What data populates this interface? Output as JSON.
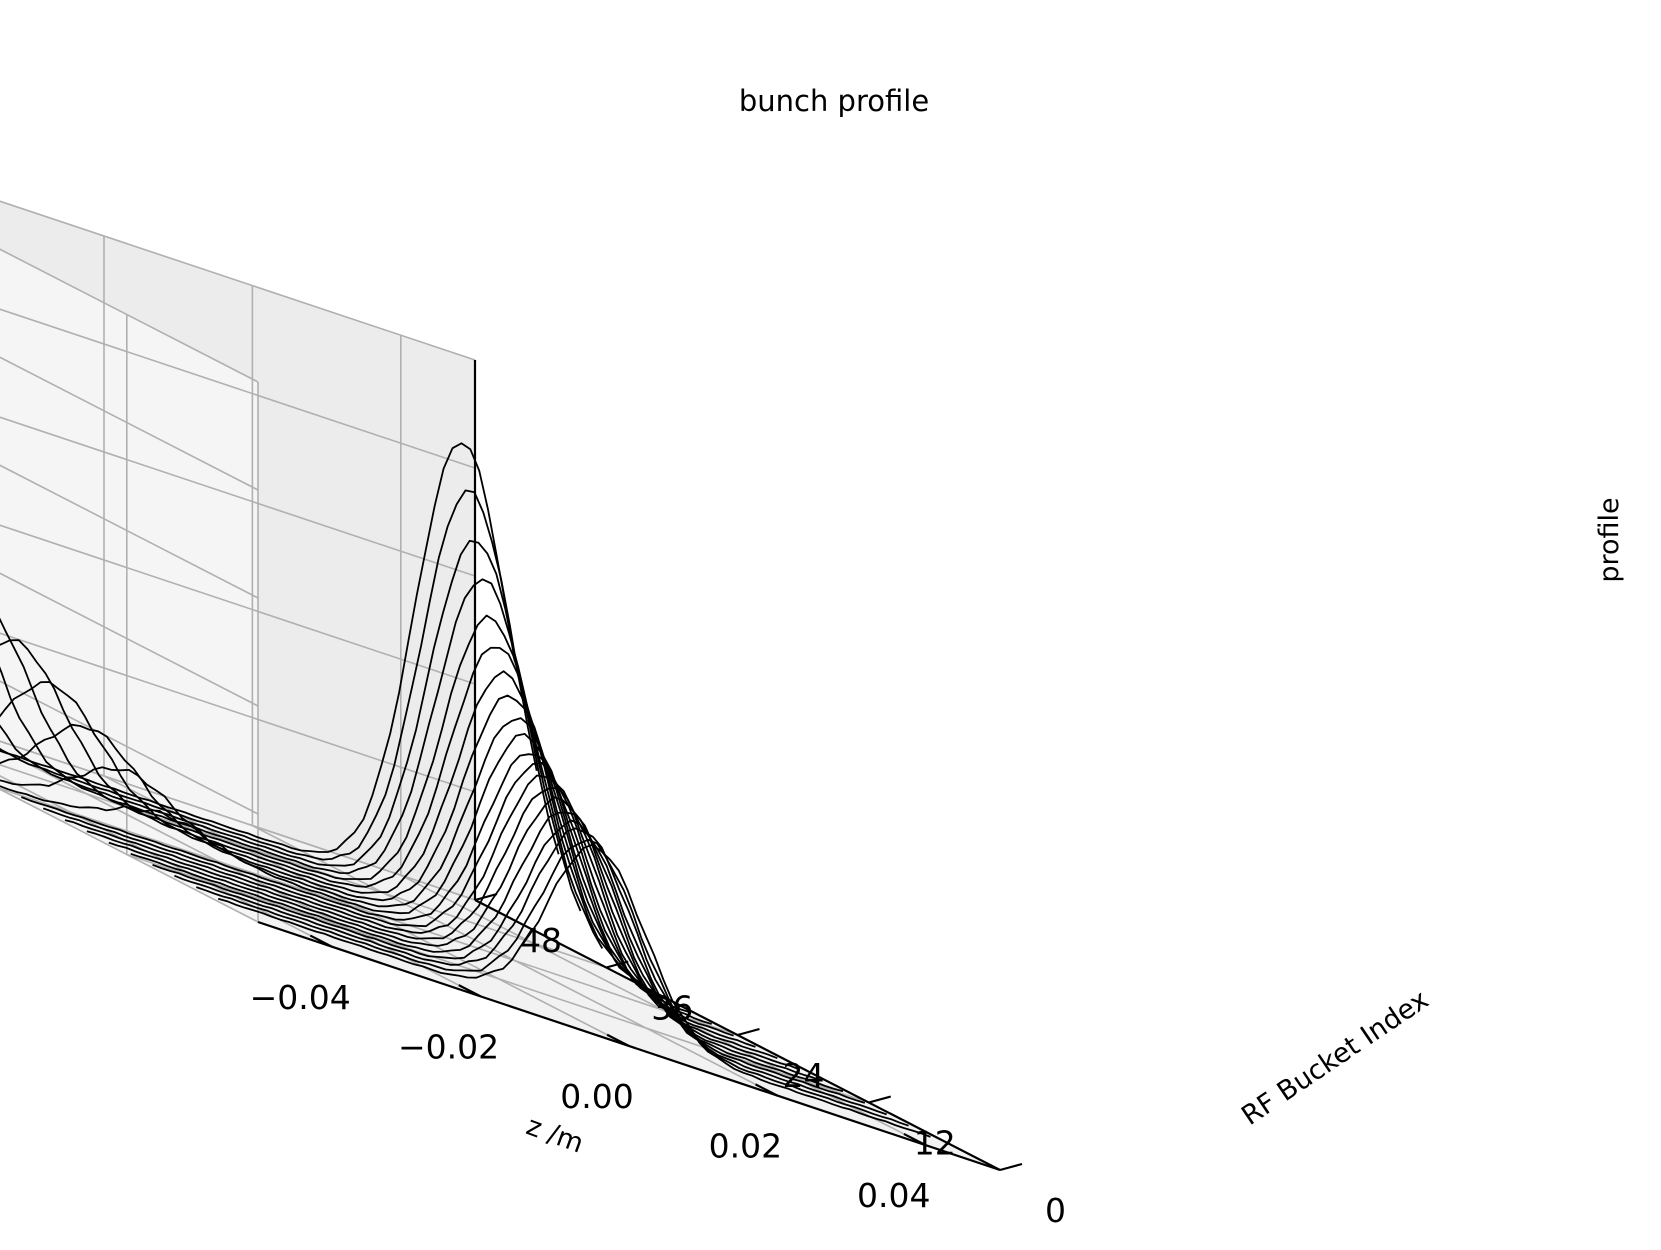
{
  "chart_data": {
    "type": "line",
    "subtype": "3d-waterfall",
    "title": "bunch profile",
    "xlabel": "z /m",
    "ylabel": "RF Bucket Index",
    "zlabel": "profile",
    "xlim": [
      -0.05,
      0.05
    ],
    "ylim": [
      0,
      48
    ],
    "zlim": [
      0,
      1
    ],
    "xticks": [
      -0.04,
      -0.02,
      0.0,
      0.02,
      0.04
    ],
    "xtick_labels": [
      "−0.04",
      "−0.02",
      "0.00",
      "0.02",
      "0.04"
    ],
    "yticks": [
      0,
      12,
      24,
      36,
      48
    ],
    "ytick_labels": [
      "0",
      "12",
      "24",
      "36",
      "48"
    ],
    "zticks_shown": false,
    "grid": true,
    "legend": "none",
    "line_color": "#000000",
    "pane_color": "#f2f2f2",
    "grid_color": "#b0b0b0",
    "series_count": 20,
    "series_note": "each line is one RF bucket; two Gaussian bunch peaks per bucket, one moving toward negative z and one toward positive z as the bucket index increases",
    "series": [
      {
        "bucket": 5.0,
        "peaks": [
          {
            "center": -0.006,
            "sigma": 0.0065,
            "height": 0.0
          },
          {
            "center": 0.003,
            "sigma": 0.0065,
            "height": 0.33
          }
        ]
      },
      {
        "bucket": 7.0,
        "peaks": [
          {
            "center": -0.008,
            "sigma": 0.0065,
            "height": 0.0
          },
          {
            "center": 0.005,
            "sigma": 0.0065,
            "height": 0.33
          }
        ]
      },
      {
        "bucket": 9.0,
        "peaks": [
          {
            "center": -0.01,
            "sigma": 0.0065,
            "height": 0.0
          },
          {
            "center": 0.007,
            "sigma": 0.0065,
            "height": 0.34
          }
        ]
      },
      {
        "bucket": 11.0,
        "peaks": [
          {
            "center": -0.012,
            "sigma": 0.0065,
            "height": 0.0
          },
          {
            "center": 0.009,
            "sigma": 0.0065,
            "height": 0.34
          }
        ]
      },
      {
        "bucket": 13.0,
        "peaks": [
          {
            "center": -0.014,
            "sigma": 0.0065,
            "height": 0.0
          },
          {
            "center": 0.011,
            "sigma": 0.0065,
            "height": 0.35
          }
        ]
      },
      {
        "bucket": 15.0,
        "peaks": [
          {
            "center": -0.016,
            "sigma": 0.0065,
            "height": 0.0
          },
          {
            "center": 0.013,
            "sigma": 0.0065,
            "height": 0.36
          }
        ]
      },
      {
        "bucket": 17.0,
        "peaks": [
          {
            "center": -0.018,
            "sigma": 0.0065,
            "height": 0.0
          },
          {
            "center": 0.015,
            "sigma": 0.0065,
            "height": 0.37
          }
        ]
      },
      {
        "bucket": 19.0,
        "peaks": [
          {
            "center": -0.02,
            "sigma": 0.0065,
            "height": 0.0
          },
          {
            "center": 0.017,
            "sigma": 0.0065,
            "height": 0.38
          }
        ]
      },
      {
        "bucket": 21.0,
        "peaks": [
          {
            "center": -0.022,
            "sigma": 0.0065,
            "height": 0.0
          },
          {
            "center": 0.019,
            "sigma": 0.0065,
            "height": 0.39
          }
        ]
      },
      {
        "bucket": 23.0,
        "peaks": [
          {
            "center": -0.024,
            "sigma": 0.0065,
            "height": 0.0
          },
          {
            "center": 0.021,
            "sigma": 0.0065,
            "height": 0.4
          }
        ]
      },
      {
        "bucket": 25.0,
        "peaks": [
          {
            "center": -0.026,
            "sigma": 0.0065,
            "height": 0.05
          },
          {
            "center": 0.023,
            "sigma": 0.0065,
            "height": 0.42
          }
        ]
      },
      {
        "bucket": 27.0,
        "peaks": [
          {
            "center": -0.028,
            "sigma": 0.0065,
            "height": 0.1
          },
          {
            "center": 0.025,
            "sigma": 0.0065,
            "height": 0.44
          }
        ]
      },
      {
        "bucket": 29.0,
        "peaks": [
          {
            "center": -0.03,
            "sigma": 0.0065,
            "height": 0.15
          },
          {
            "center": 0.027,
            "sigma": 0.0065,
            "height": 0.47
          }
        ]
      },
      {
        "bucket": 31.0,
        "peaks": [
          {
            "center": -0.032,
            "sigma": 0.0065,
            "height": 0.2
          },
          {
            "center": 0.029,
            "sigma": 0.0065,
            "height": 0.5
          }
        ]
      },
      {
        "bucket": 33.0,
        "peaks": [
          {
            "center": -0.034,
            "sigma": 0.0065,
            "height": 0.25
          },
          {
            "center": 0.031,
            "sigma": 0.0065,
            "height": 0.54
          }
        ]
      },
      {
        "bucket": 35.0,
        "peaks": [
          {
            "center": -0.036,
            "sigma": 0.0065,
            "height": 0.3
          },
          {
            "center": 0.033,
            "sigma": 0.0065,
            "height": 0.58
          }
        ]
      },
      {
        "bucket": 37.0,
        "peaks": [
          {
            "center": -0.038,
            "sigma": 0.0065,
            "height": 0.35
          },
          {
            "center": 0.035,
            "sigma": 0.0065,
            "height": 0.64
          }
        ]
      },
      {
        "bucket": 39.0,
        "peaks": [
          {
            "center": -0.04,
            "sigma": 0.0065,
            "height": 0.4
          },
          {
            "center": 0.037,
            "sigma": 0.0065,
            "height": 0.7
          }
        ]
      },
      {
        "bucket": 41.0,
        "peaks": [
          {
            "center": -0.042,
            "sigma": 0.0065,
            "height": 0.45
          },
          {
            "center": 0.039,
            "sigma": 0.0065,
            "height": 0.78
          }
        ]
      },
      {
        "bucket": 43.0,
        "peaks": [
          {
            "center": -0.044,
            "sigma": 0.0065,
            "height": 0.5
          },
          {
            "center": 0.041,
            "sigma": 0.0065,
            "height": 0.86
          }
        ]
      }
    ]
  }
}
